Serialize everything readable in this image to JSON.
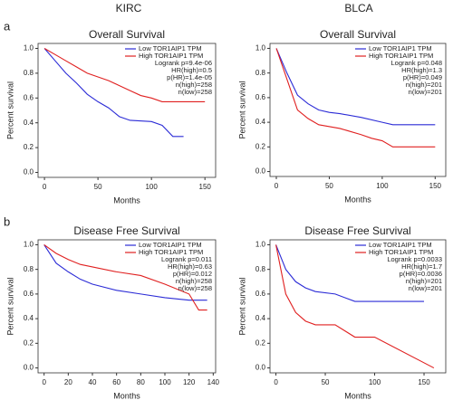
{
  "columns": [
    "KIRC",
    "BLCA"
  ],
  "panel_labels": [
    "a",
    "b"
  ],
  "chart_data": [
    {
      "type": "line",
      "title": "Overall Survival",
      "x_label": "Months",
      "y_label": "Percent survival",
      "xlim": [
        -6,
        160
      ],
      "xticks": [
        0,
        50,
        100,
        150
      ],
      "ylim": [
        -0.04,
        1.04
      ],
      "yticks": [
        {
          "value": 0,
          "label": "0.0"
        },
        0.2,
        0.4,
        0.6,
        0.8,
        {
          "value": 1,
          "label": "1.0"
        }
      ],
      "annotations": [
        "Logrank p=9.4e-06",
        "HR(high)=0.5",
        "p(HR)=1.4e-05",
        "n(high)=258",
        "n(low)=258"
      ],
      "series": [
        {
          "name": "Low TOR1AIP1 TPM",
          "color": "#2b2bd6",
          "x": [
            0,
            10,
            20,
            30,
            40,
            50,
            60,
            70,
            80,
            100,
            110,
            120,
            130
          ],
          "values": [
            1,
            0.9,
            0.8,
            0.72,
            0.63,
            0.57,
            0.52,
            0.45,
            0.42,
            0.41,
            0.38,
            0.29,
            0.29
          ]
        },
        {
          "name": "High TOR1AIP1 TPM",
          "color": "#e02020",
          "x": [
            0,
            10,
            20,
            30,
            40,
            50,
            60,
            70,
            80,
            90,
            100,
            110,
            150
          ],
          "values": [
            1,
            0.95,
            0.9,
            0.85,
            0.8,
            0.77,
            0.74,
            0.7,
            0.66,
            0.62,
            0.6,
            0.57,
            0.57
          ]
        }
      ]
    },
    {
      "type": "line",
      "title": "Overall Survival",
      "x_label": "Months",
      "y_label": "Percent survival",
      "xlim": [
        -6,
        160
      ],
      "xticks": [
        0,
        50,
        100,
        150
      ],
      "ylim": [
        -0.04,
        1.04
      ],
      "yticks": [
        {
          "value": 0,
          "label": "0.0"
        },
        0.2,
        0.4,
        0.6,
        0.8,
        {
          "value": 1,
          "label": "1.0"
        }
      ],
      "annotations": [
        "Logrank p=0.048",
        "HR(high)=1.3",
        "p(HR)=0.049",
        "n(high)=201",
        "n(low)=201"
      ],
      "series": [
        {
          "name": "Low TOR1AIP1 TPM",
          "color": "#2b2bd6",
          "x": [
            0,
            10,
            20,
            30,
            40,
            50,
            60,
            80,
            100,
            110,
            150
          ],
          "values": [
            1,
            0.8,
            0.62,
            0.55,
            0.5,
            0.48,
            0.47,
            0.44,
            0.4,
            0.38,
            0.38
          ]
        },
        {
          "name": "High TOR1AIP1 TPM",
          "color": "#e02020",
          "x": [
            0,
            10,
            20,
            30,
            40,
            60,
            80,
            90,
            100,
            110,
            150
          ],
          "values": [
            1,
            0.75,
            0.5,
            0.43,
            0.38,
            0.35,
            0.3,
            0.27,
            0.25,
            0.2,
            0.2
          ]
        }
      ]
    },
    {
      "type": "line",
      "title": "Disease Free Survival",
      "x_label": "Months",
      "y_label": "Percent survival",
      "xlim": [
        -5,
        142
      ],
      "xticks": [
        0,
        20,
        40,
        60,
        80,
        100,
        120,
        140
      ],
      "ylim": [
        -0.04,
        1.04
      ],
      "yticks": [
        {
          "value": 0,
          "label": "0.0"
        },
        0.2,
        0.4,
        0.6,
        0.8,
        {
          "value": 1,
          "label": "1.0"
        }
      ],
      "annotations": [
        "Logrank p=0.011",
        "HR(high)=0.63",
        "p(HR)=0.012",
        "n(high)=258",
        "n(low)=258"
      ],
      "series": [
        {
          "name": "Low TOR1AIP1 TPM",
          "color": "#2b2bd6",
          "x": [
            0,
            10,
            20,
            30,
            40,
            60,
            80,
            100,
            120,
            135
          ],
          "values": [
            1,
            0.85,
            0.78,
            0.72,
            0.68,
            0.63,
            0.6,
            0.57,
            0.55,
            0.55
          ]
        },
        {
          "name": "High TOR1AIP1 TPM",
          "color": "#e02020",
          "x": [
            0,
            10,
            20,
            30,
            40,
            60,
            80,
            100,
            120,
            128,
            135
          ],
          "values": [
            1,
            0.93,
            0.88,
            0.84,
            0.82,
            0.78,
            0.75,
            0.68,
            0.6,
            0.47,
            0.47
          ]
        }
      ]
    },
    {
      "type": "line",
      "title": "Disease Free Survival",
      "x_label": "Months",
      "y_label": "Percent survival",
      "xlim": [
        -6,
        172
      ],
      "xticks": [
        0,
        50,
        100,
        150
      ],
      "ylim": [
        -0.04,
        1.04
      ],
      "yticks": [
        {
          "value": 0,
          "label": "0.0"
        },
        0.2,
        0.4,
        0.6,
        0.8,
        {
          "value": 1,
          "label": "1.0"
        }
      ],
      "annotations": [
        "Logrank p=0.0033",
        "HR(high)=1.7",
        "p(HR)=0.0036",
        "n(high)=201",
        "n(low)=201"
      ],
      "series": [
        {
          "name": "Low TOR1AIP1 TPM",
          "color": "#2b2bd6",
          "x": [
            0,
            10,
            20,
            30,
            40,
            60,
            80,
            150
          ],
          "values": [
            1,
            0.8,
            0.7,
            0.65,
            0.62,
            0.6,
            0.54,
            0.54
          ]
        },
        {
          "name": "High TOR1AIP1 TPM",
          "color": "#e02020",
          "x": [
            0,
            5,
            10,
            20,
            30,
            40,
            60,
            80,
            100,
            160
          ],
          "values": [
            1,
            0.8,
            0.6,
            0.45,
            0.38,
            0.35,
            0.35,
            0.25,
            0.25,
            0
          ]
        }
      ]
    }
  ]
}
